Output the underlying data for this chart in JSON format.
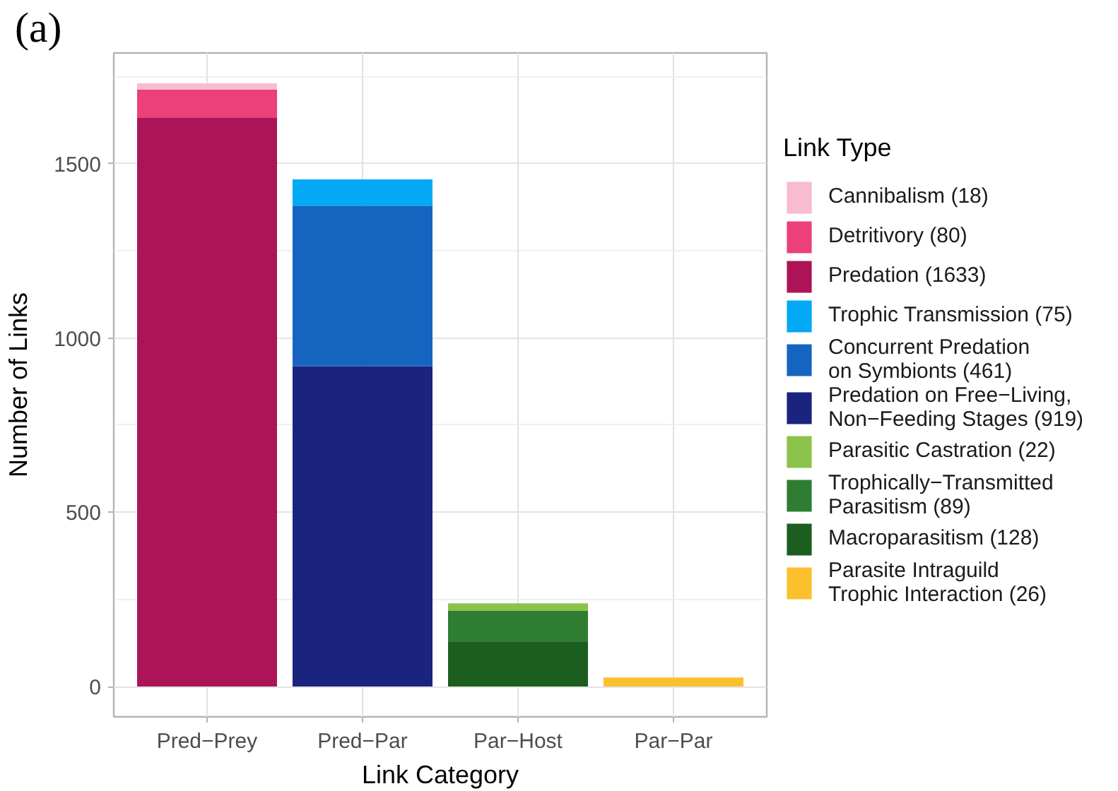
{
  "chart_data": {
    "type": "bar",
    "title": "(a)",
    "xlabel": "Link Category",
    "ylabel": "Number of Links",
    "legend_title": "Link Type",
    "categories": [
      "Pred−Prey",
      "Pred−Par",
      "Par−Host",
      "Par−Par"
    ],
    "stacked": true,
    "ylim": [
      -87,
      1818
    ],
    "yticks": [
      0,
      500,
      1000,
      1500
    ],
    "grid": true,
    "legend": "right",
    "series": [
      {
        "name": "Predation (1633)",
        "color": "#ad1457",
        "values": [
          1633,
          null,
          null,
          null
        ]
      },
      {
        "name": "Detritivory (80)",
        "color": "#ec407a",
        "values": [
          80,
          null,
          null,
          null
        ]
      },
      {
        "name": "Cannibalism (18)",
        "color": "#f8bbd0",
        "values": [
          18,
          null,
          null,
          null
        ]
      },
      {
        "name": "Predation on Free−Living,\nNon−Feeding Stages (919)",
        "color": "#1a237e",
        "values": [
          null,
          919,
          null,
          null
        ]
      },
      {
        "name": "Concurrent Predation\non Symbionts (461)",
        "color": "#1565c0",
        "values": [
          null,
          461,
          null,
          null
        ]
      },
      {
        "name": "Trophic Transmission (75)",
        "color": "#03a9f4",
        "values": [
          null,
          75,
          null,
          null
        ]
      },
      {
        "name": "Macroparasitism (128)",
        "color": "#1b5e20",
        "values": [
          null,
          null,
          128,
          null
        ]
      },
      {
        "name": "Trophically−Transmitted\nParasitism (89)",
        "color": "#2e7d32",
        "values": [
          null,
          null,
          89,
          null
        ]
      },
      {
        "name": "Parasitic Castration (22)",
        "color": "#8bc34a",
        "values": [
          null,
          null,
          22,
          null
        ]
      },
      {
        "name": "Parasite Intraguild\nTrophic Interaction (26)",
        "color": "#fbc02d",
        "values": [
          null,
          null,
          null,
          26
        ]
      }
    ]
  }
}
